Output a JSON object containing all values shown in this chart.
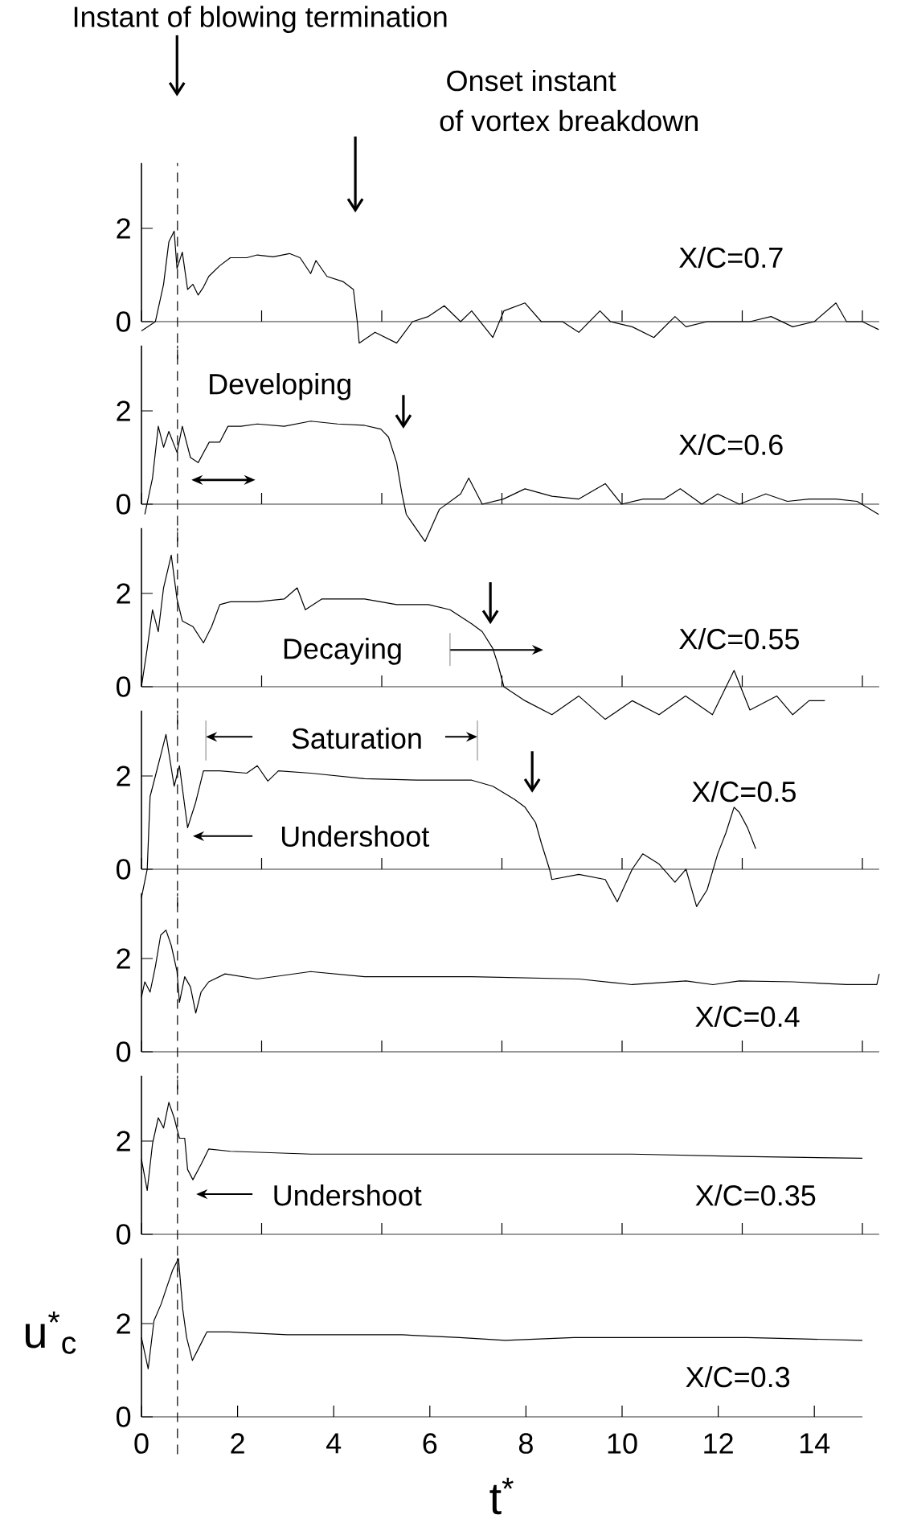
{
  "chart_data": [
    {
      "type": "line",
      "color": "#000000",
      "xlim": [
        0,
        15.35
      ],
      "ylim": [
        -0.8,
        3.4
      ],
      "xticks": [
        0,
        2.5,
        5,
        7.5,
        10,
        12.5,
        15
      ],
      "yticks": [
        0,
        2
      ],
      "tick_labels": "y",
      "x": [
        0,
        0.29,
        0.46,
        0.57,
        0.68,
        0.74,
        0.85,
        0.96,
        1.07,
        1.18,
        1.29,
        1.4,
        1.63,
        1.85,
        2.19,
        2.41,
        2.74,
        3.08,
        3.3,
        3.52,
        3.63,
        3.86,
        4.19,
        4.41,
        4.49,
        4.53,
        4.86,
        5.31,
        5.64,
        5.97,
        6.3,
        6.64,
        6.87,
        7.31,
        7.54,
        7.98,
        8.32,
        8.76,
        9.1,
        9.54,
        9.76,
        10.21,
        10.66,
        11.1,
        11.33,
        11.77,
        12.22,
        12.66,
        13.1,
        13.55,
        14.0,
        14.45,
        14.67,
        15.0,
        15.34
      ],
      "values": [
        -0.2,
        0,
        0.8,
        1.71,
        1.94,
        1.14,
        1.49,
        0.69,
        0.8,
        0.57,
        0.74,
        0.97,
        1.2,
        1.37,
        1.37,
        1.43,
        1.39,
        1.46,
        1.37,
        1.03,
        1.31,
        0.97,
        0.86,
        0.69,
        0,
        -0.46,
        -0.23,
        -0.46,
        0,
        0.11,
        0.34,
        0,
        0.23,
        -0.34,
        0.23,
        0.4,
        0,
        0,
        -0.23,
        0.23,
        0,
        -0.11,
        -0.34,
        0.11,
        -0.11,
        0,
        0,
        0,
        0.11,
        -0.11,
        0,
        0.4,
        0,
        0,
        -0.17
      ],
      "ref_lines": [
        {
          "axis": "x",
          "value": 0.75,
          "line_style": "dashed",
          "color": "#000000"
        }
      ],
      "annotations": [
        "Instant of blowing termination",
        "Onset instant",
        "of vortex breakdown",
        "X/C=0.7"
      ]
    },
    {
      "type": "line",
      "color": "#000000",
      "xlim": [
        0,
        15.35
      ],
      "ylim": [
        -0.8,
        3.4
      ],
      "xticks": [
        0,
        2.5,
        5,
        7.5,
        10,
        12.5,
        15
      ],
      "yticks": [
        0,
        2
      ],
      "tick_labels": "y",
      "x": [
        0.07,
        0.23,
        0.35,
        0.46,
        0.57,
        0.74,
        0.85,
        1.02,
        1.18,
        1.41,
        1.63,
        1.8,
        2.07,
        2.41,
        2.97,
        3.52,
        4.08,
        4.64,
        4.98,
        5.14,
        5.31,
        5.42,
        5.51,
        5.9,
        6.2,
        6.64,
        6.81,
        7.09,
        7.53,
        7.98,
        8.54,
        9.1,
        9.65,
        9.99,
        10.44,
        10.88,
        11.21,
        11.66,
        11.99,
        12.44,
        12.99,
        13.44,
        13.89,
        14.45,
        14.89,
        15.34
      ],
      "values": [
        -0.22,
        0.56,
        1.67,
        1.22,
        1.56,
        1.11,
        1.67,
        1.0,
        0.89,
        1.33,
        1.33,
        1.67,
        1.67,
        1.72,
        1.67,
        1.78,
        1.72,
        1.69,
        1.61,
        1.44,
        0.89,
        0.22,
        -0.22,
        -0.8,
        -0.11,
        0.22,
        0.56,
        0,
        0.11,
        0.33,
        0.17,
        0.11,
        0.44,
        0,
        0.11,
        0.11,
        0.33,
        0,
        0.22,
        0,
        0.22,
        0.06,
        0.11,
        0.11,
        0.06,
        -0.22
      ],
      "ref_lines": [
        {
          "axis": "x",
          "value": 0.75,
          "line_style": "dashed",
          "color": "#000000"
        }
      ],
      "annotations": [
        "Developing",
        "X/C=0.6"
      ]
    },
    {
      "type": "line",
      "color": "#000000",
      "xlim": [
        0,
        15.35
      ],
      "ylim": [
        -0.8,
        3.4
      ],
      "xticks": [
        0,
        2.5,
        5,
        7.5,
        10,
        12.5,
        15
      ],
      "yticks": [
        0,
        2
      ],
      "tick_labels": "y",
      "x": [
        0,
        0.12,
        0.23,
        0.35,
        0.46,
        0.62,
        0.74,
        0.85,
        1.07,
        1.29,
        1.46,
        1.63,
        1.85,
        2.41,
        2.97,
        3.24,
        3.41,
        3.75,
        4.64,
        5.31,
        5.97,
        6.42,
        6.87,
        7.09,
        7.31,
        7.42,
        7.54,
        7.98,
        8.54,
        9.1,
        9.65,
        10.21,
        10.77,
        11.32,
        11.88,
        12.33,
        12.66,
        13.22,
        13.55,
        13.89,
        14.22
      ],
      "values": [
        0,
        0.82,
        1.65,
        1.18,
        2.12,
        2.82,
        1.88,
        1.41,
        1.29,
        0.94,
        1.29,
        1.76,
        1.82,
        1.82,
        1.88,
        2.12,
        1.65,
        1.88,
        1.88,
        1.76,
        1.76,
        1.65,
        1.35,
        1.18,
        0.82,
        0.47,
        0,
        -0.3,
        -0.6,
        -0.2,
        -0.7,
        -0.3,
        -0.6,
        -0.2,
        -0.6,
        0.35,
        -0.5,
        -0.2,
        -0.6,
        -0.3,
        -0.3
      ],
      "ref_lines": [
        {
          "axis": "x",
          "value": 0.75,
          "line_style": "dashed",
          "color": "#000000"
        }
      ],
      "annotations": [
        "Decaying",
        "X/C=0.55"
      ]
    },
    {
      "type": "line",
      "color": "#000000",
      "xlim": [
        0,
        15.35
      ],
      "ylim": [
        -0.8,
        3.4
      ],
      "xticks": [
        0,
        2.5,
        5,
        7.5,
        10,
        12.5,
        15
      ],
      "yticks": [
        0,
        2
      ],
      "tick_labels": "y",
      "x": [
        0,
        0.12,
        0.18,
        0.29,
        0.4,
        0.51,
        0.68,
        0.79,
        0.96,
        1.13,
        1.29,
        1.63,
        2.19,
        2.41,
        2.63,
        2.85,
        3.52,
        4.64,
        5.75,
        6.87,
        7.31,
        7.76,
        7.98,
        8.2,
        8.32,
        8.49,
        8.54,
        9.1,
        9.65,
        9.9,
        10.21,
        10.43,
        10.77,
        11.1,
        11.33,
        11.55,
        11.77,
        11.99,
        12.16,
        12.33,
        12.44,
        12.61,
        12.78
      ],
      "values": [
        -0.61,
        0,
        1.56,
        2.0,
        2.44,
        2.89,
        1.78,
        2.22,
        0.89,
        1.44,
        2.11,
        2.11,
        2.06,
        2.22,
        1.89,
        2.11,
        2.06,
        1.94,
        1.91,
        1.91,
        1.78,
        1.5,
        1.33,
        1.0,
        0.56,
        0,
        -0.22,
        -0.11,
        -0.22,
        -0.7,
        0,
        0.33,
        0.11,
        -0.28,
        0,
        -0.8,
        -0.44,
        0.33,
        0.78,
        1.33,
        1.22,
        0.89,
        0.44
      ],
      "ref_lines": [
        {
          "axis": "x",
          "value": 0.75,
          "line_style": "dashed",
          "color": "#000000"
        }
      ],
      "annotations": [
        "Saturation",
        "Undershoot",
        "X/C=0.5"
      ]
    },
    {
      "type": "line",
      "color": "#000000",
      "xlim": [
        0,
        15.35
      ],
      "ylim": [
        -0.8,
        3.4
      ],
      "xticks": [
        0,
        2.5,
        5,
        7.5,
        10,
        12.5,
        15
      ],
      "yticks": [
        0,
        2
      ],
      "tick_labels": "y",
      "x": [
        0,
        0.07,
        0.18,
        0.29,
        0.4,
        0.51,
        0.62,
        0.74,
        0.79,
        0.9,
        1.02,
        1.13,
        1.24,
        1.4,
        1.74,
        2.41,
        3.52,
        4.64,
        6.87,
        9.1,
        10.21,
        11.33,
        11.89,
        12.44,
        13.55,
        14.67,
        15.3,
        15.35
      ],
      "values": [
        1.17,
        1.5,
        1.28,
        1.83,
        2.5,
        2.61,
        2.28,
        1.72,
        1.06,
        1.61,
        1.39,
        0.83,
        1.28,
        1.5,
        1.67,
        1.56,
        1.72,
        1.61,
        1.61,
        1.56,
        1.44,
        1.52,
        1.44,
        1.52,
        1.5,
        1.44,
        1.44,
        1.67
      ],
      "ref_lines": [
        {
          "axis": "x",
          "value": 0.75,
          "line_style": "dashed",
          "color": "#000000"
        }
      ],
      "annotations": [
        "X/C=0.4"
      ]
    },
    {
      "type": "line",
      "color": "#000000",
      "xlim": [
        0,
        15.35
      ],
      "ylim": [
        -0.8,
        3.4
      ],
      "xticks": [
        0,
        2.5,
        5,
        7.5,
        10,
        12.5,
        15
      ],
      "yticks": [
        0,
        2
      ],
      "tick_labels": "y",
      "x": [
        0,
        0.12,
        0.23,
        0.35,
        0.46,
        0.57,
        0.68,
        0.79,
        0.9,
        0.96,
        1.07,
        1.24,
        1.4,
        1.85,
        3.52,
        5.75,
        7.98,
        10.21,
        12.44,
        15.0
      ],
      "values": [
        1.61,
        0.94,
        1.94,
        2.5,
        2.28,
        2.83,
        2.5,
        2.06,
        2.06,
        1.39,
        1.17,
        1.5,
        1.83,
        1.78,
        1.72,
        1.72,
        1.72,
        1.72,
        1.67,
        1.63
      ],
      "ref_lines": [
        {
          "axis": "x",
          "value": 0.75,
          "line_style": "dashed",
          "color": "#000000"
        }
      ],
      "annotations": [
        "Undershoot",
        "X/C=0.35"
      ]
    },
    {
      "type": "line",
      "color": "#000000",
      "xlim": [
        0,
        15
      ],
      "ylim": [
        -0.8,
        3.4
      ],
      "xticks": [
        0,
        2,
        4,
        6,
        8,
        10,
        12,
        14
      ],
      "yticks": [
        0,
        2
      ],
      "xlabel": "t$^{*}$",
      "ylabel": "u$^{*}$$_{c}$",
      "x": [
        0,
        0.14,
        0.26,
        0.41,
        0.53,
        0.65,
        0.77,
        0.86,
        0.94,
        1.06,
        1.18,
        1.36,
        1.83,
        3.03,
        4.23,
        5.42,
        6.62,
        7.57,
        9.0,
        10.2,
        11.4,
        12.59,
        13.79,
        15.0
      ],
      "values": [
        1.7,
        1.03,
        2.06,
        2.42,
        2.79,
        3.15,
        3.39,
        2.3,
        1.7,
        1.21,
        1.45,
        1.82,
        1.82,
        1.76,
        1.76,
        1.76,
        1.7,
        1.64,
        1.7,
        1.7,
        1.7,
        1.7,
        1.67,
        1.64
      ],
      "ref_lines": [
        {
          "axis": "x",
          "value": 0.75,
          "line_style": "dashed",
          "color": "#000000"
        }
      ],
      "annotations": [
        "X/C=0.3"
      ]
    }
  ]
}
